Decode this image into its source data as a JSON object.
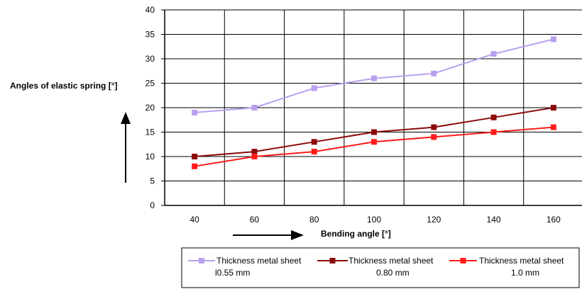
{
  "chart_data": {
    "type": "line",
    "title": "",
    "xlabel": "Bending angle [°]",
    "ylabel": "Angles of elastic spring [°]",
    "categories": [
      40,
      60,
      80,
      100,
      120,
      140,
      160
    ],
    "ylim": [
      0,
      40
    ],
    "yticks": [
      0,
      5,
      10,
      15,
      20,
      25,
      30,
      35,
      40
    ],
    "grid": true,
    "legend_position": "bottom",
    "series": [
      {
        "name_line1": "Thickness metal sheet",
        "name_line2": "l0.55 mm",
        "color": "#b9a0ee",
        "values": [
          19,
          20,
          24,
          26,
          27,
          31,
          34
        ]
      },
      {
        "name_line1": "Thickness metal sheet",
        "name_line2": "0.80 mm",
        "color": "#8b0a0a",
        "values": [
          10,
          11,
          13,
          15,
          16,
          18,
          20
        ]
      },
      {
        "name_line1": "Thickness metal sheet",
        "name_line2": "1.0 mm",
        "color": "#ff1a1a",
        "values": [
          8,
          10,
          11,
          13,
          14,
          15,
          16
        ]
      }
    ]
  }
}
